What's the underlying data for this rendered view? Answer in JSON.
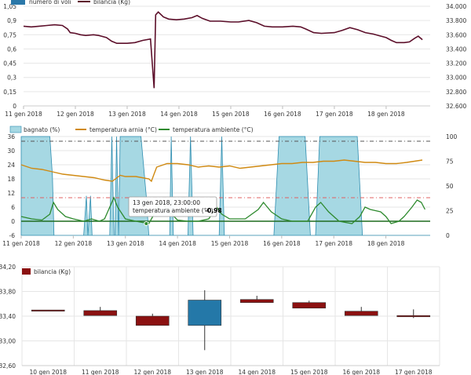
{
  "colors": {
    "weight_line": "#5c0f2a",
    "flights_bar": "#2b78a9",
    "wet_area": "#a6d8e3",
    "wet_stroke": "#2e8db0",
    "hive_temp": "#d08a12",
    "ambient_temp": "#2e8a2e",
    "zero_line": "#1f6b1f",
    "dashed_dark": "#555555",
    "dashed_red": "#e06060",
    "candle_up": "#2478a8",
    "candle_down": "#8b1111",
    "grid": "#e6e6e6"
  },
  "tooltip": {
    "date": "13 gen 2018, 23:00:00",
    "label": "temperatura ambiente (°C):",
    "value": "-0,98"
  },
  "chart_data": [
    {
      "type": "line",
      "panel": "top",
      "legend": [
        "numero di voli",
        "bilancia (Kg)"
      ],
      "x_ticks": [
        "11 gen 2018",
        "12 gen 2018",
        "13 gen 2018",
        "14 gen 2018",
        "15 gen 2018",
        "16 gen 2018",
        "17 gen 2018",
        "18 gen 2018"
      ],
      "x_range_days": [
        11,
        18.85
      ],
      "left_axis": {
        "ticks": [
          "0",
          "0,15",
          "0,3",
          "0,45",
          "0,6",
          "0,75",
          "0,9",
          "1,05"
        ],
        "ylim": [
          0,
          1.05
        ]
      },
      "right_axis": {
        "ticks": [
          "32.600",
          "32.800",
          "33.000",
          "33.200",
          "33.400",
          "33.600",
          "33.800",
          "34.000"
        ],
        "ylim": [
          32600,
          34000
        ]
      },
      "series": [
        {
          "name": "bilancia (Kg)",
          "axis": "right",
          "points": [
            [
              11.0,
              33.72
            ],
            [
              11.15,
              33.71
            ],
            [
              11.3,
              33.72
            ],
            [
              11.45,
              33.73
            ],
            [
              11.6,
              33.74
            ],
            [
              11.75,
              33.73
            ],
            [
              11.85,
              33.68
            ],
            [
              11.9,
              33.63
            ],
            [
              12.0,
              33.62
            ],
            [
              12.1,
              33.6
            ],
            [
              12.2,
              33.59
            ],
            [
              12.35,
              33.6
            ],
            [
              12.45,
              33.59
            ],
            [
              12.6,
              33.56
            ],
            [
              12.7,
              33.51
            ],
            [
              12.8,
              33.48
            ],
            [
              13.0,
              33.48
            ],
            [
              13.15,
              33.49
            ],
            [
              13.3,
              33.52
            ],
            [
              13.45,
              33.54
            ],
            [
              13.52,
              32.85
            ],
            [
              13.55,
              33.88
            ],
            [
              13.6,
              33.92
            ],
            [
              13.7,
              33.85
            ],
            [
              13.8,
              33.82
            ],
            [
              13.95,
              33.81
            ],
            [
              14.1,
              33.82
            ],
            [
              14.25,
              33.84
            ],
            [
              14.35,
              33.87
            ],
            [
              14.45,
              33.83
            ],
            [
              14.6,
              33.79
            ],
            [
              14.8,
              33.79
            ],
            [
              15.0,
              33.78
            ],
            [
              15.15,
              33.78
            ],
            [
              15.35,
              33.8
            ],
            [
              15.5,
              33.77
            ],
            [
              15.65,
              33.72
            ],
            [
              15.8,
              33.71
            ],
            [
              16.0,
              33.71
            ],
            [
              16.2,
              33.72
            ],
            [
              16.35,
              33.71
            ],
            [
              16.45,
              33.68
            ],
            [
              16.6,
              33.63
            ],
            [
              16.75,
              33.62
            ],
            [
              17.0,
              33.63
            ],
            [
              17.15,
              33.66
            ],
            [
              17.3,
              33.7
            ],
            [
              17.45,
              33.67
            ],
            [
              17.6,
              33.63
            ],
            [
              17.75,
              33.61
            ],
            [
              17.9,
              33.58
            ],
            [
              18.0,
              33.56
            ],
            [
              18.1,
              33.52
            ],
            [
              18.2,
              33.49
            ],
            [
              18.35,
              33.49
            ],
            [
              18.45,
              33.5
            ],
            [
              18.55,
              33.55
            ],
            [
              18.62,
              33.58
            ],
            [
              18.7,
              33.53
            ]
          ]
        }
      ]
    },
    {
      "type": "area",
      "panel": "middle",
      "legend": [
        "bagnato (%)",
        "temperatura arnia (°C)",
        "temperatura ambiente (°C)"
      ],
      "x_ticks": [
        "11 gen 2018",
        "12 gen 2018",
        "13 gen 2018",
        "14 gen 2018",
        "15 gen 2018",
        "16 gen 2018",
        "17 gen 2018",
        "18 gen 2018"
      ],
      "x_range_days": [
        11,
        18.85
      ],
      "left_axis": {
        "ticks": [
          "-6",
          "0",
          "6",
          "12",
          "18",
          "24",
          "30",
          "36"
        ],
        "ylim": [
          -6,
          36
        ]
      },
      "right_axis": {
        "ticks": [
          "0",
          "25",
          "50",
          "75",
          "100"
        ],
        "ylim": [
          0,
          100
        ]
      },
      "reference_lines": [
        {
          "value": 34,
          "axis": "left",
          "style": "dashed-dark"
        },
        {
          "value": 10,
          "axis": "left",
          "style": "dashed-red"
        },
        {
          "value": 0,
          "axis": "left",
          "style": "solid-green"
        }
      ],
      "series": [
        {
          "name": "bagnato (%)",
          "axis": "right",
          "points": [
            [
              11.0,
              100
            ],
            [
              11.55,
              100
            ],
            [
              11.6,
              60
            ],
            [
              11.63,
              0
            ],
            [
              12.2,
              0
            ],
            [
              12.25,
              40
            ],
            [
              12.28,
              0
            ],
            [
              12.33,
              40
            ],
            [
              12.36,
              0
            ],
            [
              12.7,
              0
            ],
            [
              12.74,
              100
            ],
            [
              12.78,
              0
            ],
            [
              12.8,
              0
            ],
            [
              12.83,
              100
            ],
            [
              12.87,
              0
            ],
            [
              12.9,
              100
            ],
            [
              13.3,
              100
            ],
            [
              13.4,
              40
            ],
            [
              13.45,
              0
            ],
            [
              13.85,
              0
            ],
            [
              13.88,
              100
            ],
            [
              13.92,
              0
            ],
            [
              14.2,
              0
            ],
            [
              14.25,
              100
            ],
            [
              14.3,
              0
            ],
            [
              14.8,
              0
            ],
            [
              14.85,
              100
            ],
            [
              14.9,
              0
            ],
            [
              15.85,
              0
            ],
            [
              15.95,
              100
            ],
            [
              16.45,
              100
            ],
            [
              16.55,
              0
            ],
            [
              16.65,
              0
            ],
            [
              16.73,
              100
            ],
            [
              17.45,
              100
            ],
            [
              17.55,
              0
            ],
            [
              18.85,
              0
            ]
          ]
        },
        {
          "name": "temperatura arnia (°C)",
          "axis": "left",
          "points": [
            [
              11.0,
              24.0
            ],
            [
              11.2,
              22.5
            ],
            [
              11.4,
              22.0
            ],
            [
              11.6,
              21.0
            ],
            [
              11.8,
              20.0
            ],
            [
              12.0,
              19.5
            ],
            [
              12.2,
              19.0
            ],
            [
              12.4,
              18.5
            ],
            [
              12.6,
              17.5
            ],
            [
              12.75,
              17.0
            ],
            [
              12.9,
              19.5
            ],
            [
              13.0,
              19.0
            ],
            [
              13.2,
              19.0
            ],
            [
              13.45,
              18.0
            ],
            [
              13.5,
              17.0
            ],
            [
              13.55,
              20.0
            ],
            [
              13.6,
              23.0
            ],
            [
              13.8,
              24.5
            ],
            [
              14.0,
              24.5
            ],
            [
              14.2,
              24.0
            ],
            [
              14.4,
              23.0
            ],
            [
              14.6,
              23.5
            ],
            [
              14.8,
              23.0
            ],
            [
              15.0,
              23.5
            ],
            [
              15.2,
              22.5
            ],
            [
              15.4,
              23.0
            ],
            [
              15.6,
              23.5
            ],
            [
              15.8,
              24.0
            ],
            [
              16.0,
              24.5
            ],
            [
              16.2,
              24.5
            ],
            [
              16.4,
              25.0
            ],
            [
              16.6,
              25.0
            ],
            [
              16.8,
              25.5
            ],
            [
              17.0,
              25.5
            ],
            [
              17.2,
              26.0
            ],
            [
              17.4,
              25.5
            ],
            [
              17.6,
              25.0
            ],
            [
              17.8,
              25.0
            ],
            [
              18.0,
              24.5
            ],
            [
              18.2,
              24.5
            ],
            [
              18.4,
              25.0
            ],
            [
              18.55,
              25.5
            ],
            [
              18.7,
              26.0
            ]
          ]
        },
        {
          "name": "temperatura ambiente (°C)",
          "axis": "left",
          "points": [
            [
              11.0,
              2.0
            ],
            [
              11.2,
              1.0
            ],
            [
              11.4,
              0.5
            ],
            [
              11.55,
              3.0
            ],
            [
              11.62,
              8.0
            ],
            [
              11.7,
              5.0
            ],
            [
              11.85,
              2.0
            ],
            [
              12.0,
              1.0
            ],
            [
              12.2,
              0.0
            ],
            [
              12.35,
              1.0
            ],
            [
              12.5,
              0.0
            ],
            [
              12.6,
              1.0
            ],
            [
              12.7,
              6.0
            ],
            [
              12.78,
              10.0
            ],
            [
              12.85,
              6.0
            ],
            [
              13.0,
              1.0
            ],
            [
              13.2,
              0.0
            ],
            [
              13.45,
              -1.0
            ],
            [
              13.6,
              5.0
            ],
            [
              13.7,
              8.0
            ],
            [
              13.8,
              5.0
            ],
            [
              14.0,
              0.5
            ],
            [
              14.2,
              0.0
            ],
            [
              14.4,
              0.0
            ],
            [
              14.6,
              1.0
            ],
            [
              14.75,
              6.0
            ],
            [
              14.85,
              3.0
            ],
            [
              15.0,
              1.0
            ],
            [
              15.3,
              1.0
            ],
            [
              15.55,
              5.0
            ],
            [
              15.65,
              8.0
            ],
            [
              15.8,
              4.0
            ],
            [
              16.0,
              1.0
            ],
            [
              16.2,
              0.0
            ],
            [
              16.5,
              0.0
            ],
            [
              16.65,
              6.0
            ],
            [
              16.75,
              8.0
            ],
            [
              16.9,
              4.0
            ],
            [
              17.1,
              0.0
            ],
            [
              17.35,
              -1.0
            ],
            [
              17.5,
              2.0
            ],
            [
              17.6,
              6.0
            ],
            [
              17.7,
              5.0
            ],
            [
              17.9,
              4.0
            ],
            [
              18.0,
              2.0
            ],
            [
              18.1,
              -1.0
            ],
            [
              18.25,
              0.0
            ],
            [
              18.35,
              2.0
            ],
            [
              18.5,
              6.0
            ],
            [
              18.6,
              9.0
            ],
            [
              18.68,
              8.0
            ],
            [
              18.75,
              5.0
            ]
          ]
        }
      ]
    },
    {
      "type": "candlestick",
      "panel": "bottom",
      "legend": [
        "bilancia (Kg)"
      ],
      "categories": [
        "10 gen 2018",
        "11 gen 2018",
        "12 gen 2018",
        "13 gen 2018",
        "14 gen 2018",
        "15 gen 2018",
        "16 gen 2018",
        "17 gen 2018"
      ],
      "y_axis": {
        "ticks": [
          "32,60",
          "33,00",
          "33,40",
          "33,80",
          "34,20"
        ],
        "ylim": [
          32.6,
          34.2
        ]
      },
      "series": [
        {
          "name": "bilancia (Kg)",
          "candles": [
            {
              "open": 33.5,
              "close": 33.49,
              "high": 33.5,
              "low": 33.49
            },
            {
              "open": 33.49,
              "close": 33.41,
              "high": 33.55,
              "low": 33.41
            },
            {
              "open": 33.4,
              "close": 33.25,
              "high": 33.44,
              "low": 33.25
            },
            {
              "open": 33.25,
              "close": 33.66,
              "high": 33.82,
              "low": 32.85
            },
            {
              "open": 33.67,
              "close": 33.62,
              "high": 33.73,
              "low": 33.62
            },
            {
              "open": 33.62,
              "close": 33.53,
              "high": 33.65,
              "low": 33.53
            },
            {
              "open": 33.48,
              "close": 33.41,
              "high": 33.55,
              "low": 33.41
            },
            {
              "open": 33.41,
              "close": 33.39,
              "high": 33.51,
              "low": 33.37
            }
          ]
        }
      ]
    }
  ]
}
